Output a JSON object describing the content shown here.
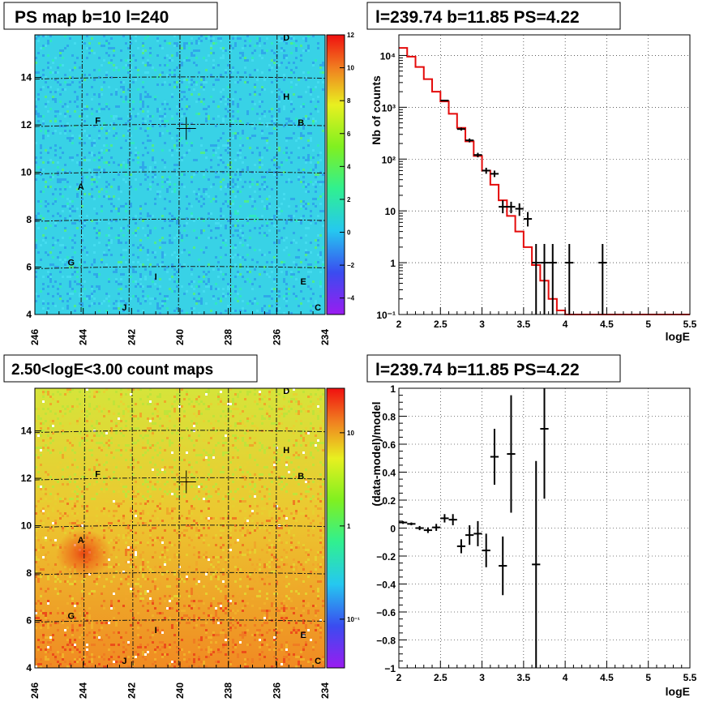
{
  "panels": {
    "ps_map": {
      "title": "PS map b=10 l=240",
      "x_ticks": [
        "246",
        "244",
        "242",
        "240",
        "238",
        "236",
        "234"
      ],
      "y_ticks": [
        "4",
        "6",
        "8",
        "10",
        "12",
        "14"
      ],
      "colorbar_ticks": [
        "12",
        "10",
        "8",
        "6",
        "4",
        "2",
        "0",
        "−2",
        "−4"
      ],
      "sources": [
        {
          "name": "D",
          "l": 235.6,
          "b": 15.7
        },
        {
          "name": "H",
          "l": 235.6,
          "b": 13.2
        },
        {
          "name": "B",
          "l": 235.0,
          "b": 12.1
        },
        {
          "name": "F",
          "l": 243.4,
          "b": 12.2
        },
        {
          "name": "A",
          "l": 244.1,
          "b": 9.4
        },
        {
          "name": "G",
          "l": 244.5,
          "b": 6.2
        },
        {
          "name": "I",
          "l": 241.0,
          "b": 5.6
        },
        {
          "name": "E",
          "l": 234.9,
          "b": 5.4
        },
        {
          "name": "J",
          "l": 242.3,
          "b": 4.3
        },
        {
          "name": "C",
          "l": 234.3,
          "b": 4.3
        }
      ]
    },
    "spectrum": {
      "title": "l=239.74 b=11.85 PS=4.22",
      "xlabel": "logE",
      "ylabel": "Nb of counts",
      "x_ticks": [
        "2",
        "2.5",
        "3",
        "3.5",
        "4",
        "4.5",
        "5",
        "5.5"
      ],
      "y_ticks": [
        "10⁻¹",
        "1",
        "10",
        "10²",
        "10³",
        "10⁴"
      ]
    },
    "count_map": {
      "title": "2.50<logE<3.00 count maps",
      "x_ticks": [
        "246",
        "244",
        "242",
        "240",
        "238",
        "236",
        "234"
      ],
      "y_ticks": [
        "4",
        "6",
        "8",
        "10",
        "12",
        "14"
      ],
      "colorbar_ticks": [
        "10",
        "1",
        "10⁻¹"
      ]
    },
    "residual": {
      "title": "l=239.74 b=11.85 PS=4.22",
      "xlabel": "logE",
      "ylabel": "(data-model)/model",
      "x_ticks": [
        "2",
        "2.5",
        "3",
        "3.5",
        "4",
        "4.5",
        "5",
        "5.5"
      ],
      "y_ticks": [
        "−1",
        "−0.8",
        "−0.6",
        "−0.4",
        "−0.2",
        "0",
        "0.2",
        "0.4",
        "0.6",
        "0.8",
        "1"
      ]
    }
  },
  "chart_data": [
    {
      "type": "heatmap",
      "title": "PS map b=10 l=240",
      "xlabel": "",
      "ylabel": "",
      "xlim": [
        246,
        234
      ],
      "ylim": [
        4,
        15.8
      ],
      "zlim": [
        -5,
        12
      ],
      "marker": {
        "l": 239.74,
        "b": 11.85
      }
    },
    {
      "type": "line",
      "title": "l=239.74 b=11.85 PS=4.22",
      "xlabel": "logE",
      "ylabel": "Nb of counts",
      "xlim": [
        2,
        5.5
      ],
      "ylim": [
        0.1,
        25000
      ],
      "yscale": "log",
      "grid": true,
      "model_edges": [
        2,
        2.1,
        2.2,
        2.3,
        2.4,
        2.5,
        2.6,
        2.7,
        2.8,
        2.9,
        3.0,
        3.1,
        3.2,
        3.3,
        3.4,
        3.5,
        3.6,
        3.7,
        3.8,
        3.9,
        4.0,
        4.1,
        5.5
      ],
      "model_values": [
        14000,
        9500,
        6000,
        3500,
        2000,
        1300,
        750,
        400,
        220,
        115,
        60,
        32,
        16,
        8,
        4,
        2,
        0.9,
        0.45,
        0.2,
        0.12,
        0.1,
        0.1
      ],
      "data_points": [
        {
          "x": 2.55,
          "y": 1350,
          "ylo": 1300,
          "yhi": 1400
        },
        {
          "x": 2.75,
          "y": 380,
          "ylo": 355,
          "yhi": 405
        },
        {
          "x": 2.85,
          "y": 230,
          "ylo": 210,
          "yhi": 250
        },
        {
          "x": 2.95,
          "y": 120,
          "ylo": 108,
          "yhi": 132
        },
        {
          "x": 3.05,
          "y": 60,
          "ylo": 52,
          "yhi": 68
        },
        {
          "x": 3.15,
          "y": 52,
          "ylo": 45,
          "yhi": 60
        },
        {
          "x": 3.25,
          "y": 12,
          "ylo": 9,
          "yhi": 16
        },
        {
          "x": 3.35,
          "y": 12,
          "ylo": 9,
          "yhi": 15
        },
        {
          "x": 3.45,
          "y": 11,
          "ylo": 8,
          "yhi": 14
        },
        {
          "x": 3.55,
          "y": 7,
          "ylo": 5,
          "yhi": 9.5
        },
        {
          "x": 3.65,
          "y": 1,
          "ylo": 0.1,
          "yhi": 2.3
        },
        {
          "x": 3.75,
          "y": 1,
          "ylo": 0.1,
          "yhi": 2.3
        },
        {
          "x": 3.85,
          "y": 1,
          "ylo": 0.1,
          "yhi": 2.3
        },
        {
          "x": 4.05,
          "y": 1,
          "ylo": 0.1,
          "yhi": 2.3
        },
        {
          "x": 4.45,
          "y": 1,
          "ylo": 0.1,
          "yhi": 2.3
        }
      ]
    },
    {
      "type": "heatmap",
      "title": "2.50<logE<3.00 count maps",
      "xlabel": "",
      "ylabel": "",
      "xlim": [
        246,
        234
      ],
      "ylim": [
        4,
        15.8
      ],
      "zscale": "log",
      "zlim": [
        0.03,
        30
      ],
      "marker": {
        "l": 239.74,
        "b": 11.85
      }
    },
    {
      "type": "scatter",
      "title": "l=239.74 b=11.85 PS=4.22",
      "xlabel": "logE",
      "ylabel": "(data-model)/model",
      "xlim": [
        2,
        5.5
      ],
      "ylim": [
        -1,
        1
      ],
      "grid": true,
      "points": [
        {
          "x": 2.05,
          "y": 0.04,
          "err": 0.01
        },
        {
          "x": 2.15,
          "y": 0.03,
          "err": 0.01
        },
        {
          "x": 2.25,
          "y": 0.0,
          "err": 0.015
        },
        {
          "x": 2.35,
          "y": -0.015,
          "err": 0.02
        },
        {
          "x": 2.45,
          "y": 0.005,
          "err": 0.025
        },
        {
          "x": 2.55,
          "y": 0.07,
          "err": 0.03
        },
        {
          "x": 2.65,
          "y": 0.06,
          "err": 0.04
        },
        {
          "x": 2.75,
          "y": -0.13,
          "err": 0.05
        },
        {
          "x": 2.85,
          "y": -0.05,
          "err": 0.07
        },
        {
          "x": 2.95,
          "y": -0.04,
          "err": 0.09
        },
        {
          "x": 3.05,
          "y": -0.16,
          "err": 0.12
        },
        {
          "x": 3.15,
          "y": 0.51,
          "err": 0.2
        },
        {
          "x": 3.25,
          "y": -0.27,
          "err": 0.21
        },
        {
          "x": 3.35,
          "y": 0.53,
          "err": 0.42
        },
        {
          "x": 3.65,
          "y": -0.26,
          "err": 0.74
        },
        {
          "x": 3.75,
          "y": 0.71,
          "err": 0.5
        }
      ]
    }
  ]
}
